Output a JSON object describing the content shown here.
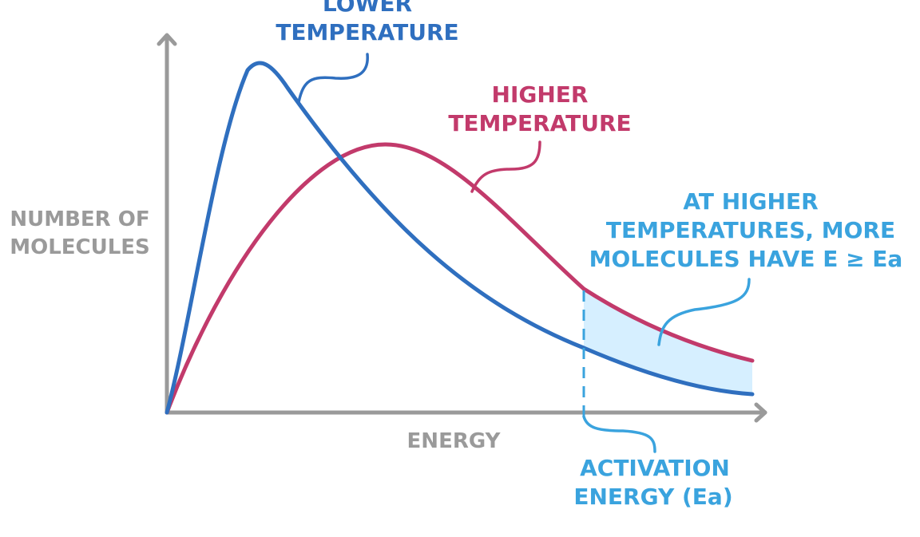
{
  "axes": {
    "y_label_lines": [
      "NUMBER OF",
      "MOLECULES"
    ],
    "x_label": "ENERGY"
  },
  "curves": [
    {
      "id": "lower",
      "label_lines": [
        "LOWER",
        "TEMPERATURE"
      ],
      "color": "#2f6fbf"
    },
    {
      "id": "higher",
      "label_lines": [
        "HIGHER",
        "TEMPERATURE"
      ],
      "color": "#c23a6b"
    }
  ],
  "annotations": {
    "shaded_region": {
      "label_lines": [
        "AT HIGHER",
        "TEMPERATURES, MORE",
        "MOLECULES HAVE E ≥ Ea"
      ],
      "color": "#3aa3de",
      "fill": "#d6efff"
    },
    "activation_energy": {
      "label_lines": [
        "ACTIVATION",
        "ENERGY (Ea)"
      ],
      "color": "#3aa3de"
    }
  },
  "axis_color": "#9a9a9a"
}
